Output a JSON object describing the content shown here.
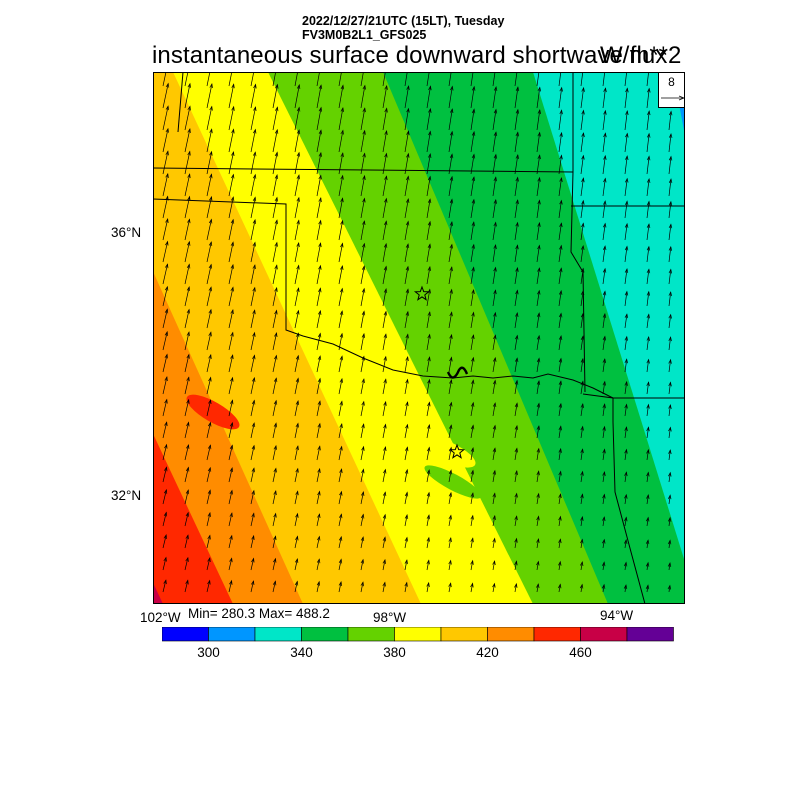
{
  "header": {
    "line1": "2022/12/27/21UTC (15LT), Tuesday",
    "line2": "FV3M0B2L1_GFS025"
  },
  "title": "instantaneous surface downward shortwave flux",
  "units": "W/m**2",
  "stats": "Min= 280.3 Max= 488.2",
  "vector_reference": {
    "label": "8"
  },
  "axes": {
    "lat_labels": [
      "36°N",
      "32°N"
    ],
    "lon_labels": [
      "102°W",
      "98°W",
      "94°W"
    ]
  },
  "colorbar": {
    "tick_labels": [
      "300",
      "340",
      "380",
      "420",
      "460"
    ],
    "colors": [
      "#0000ff",
      "#0096ff",
      "#00e6c8",
      "#00c040",
      "#64d200",
      "#ffff00",
      "#ffc800",
      "#ff8c00",
      "#ff2800",
      "#c80046",
      "#640096"
    ]
  },
  "chart_data": {
    "type": "heatmap",
    "title": "instantaneous surface downward shortwave flux",
    "units": "W/m**2",
    "levels": [
      280,
      300,
      320,
      340,
      360,
      380,
      400,
      420,
      440,
      460,
      480,
      500
    ],
    "min": 280.3,
    "max": 488.2,
    "gradient": "increasing from northeast to southwest",
    "lat_range": [
      30.5,
      38.3
    ],
    "lon_range": [
      -102.0,
      -93.1
    ],
    "markers": [
      "star",
      "star"
    ]
  }
}
